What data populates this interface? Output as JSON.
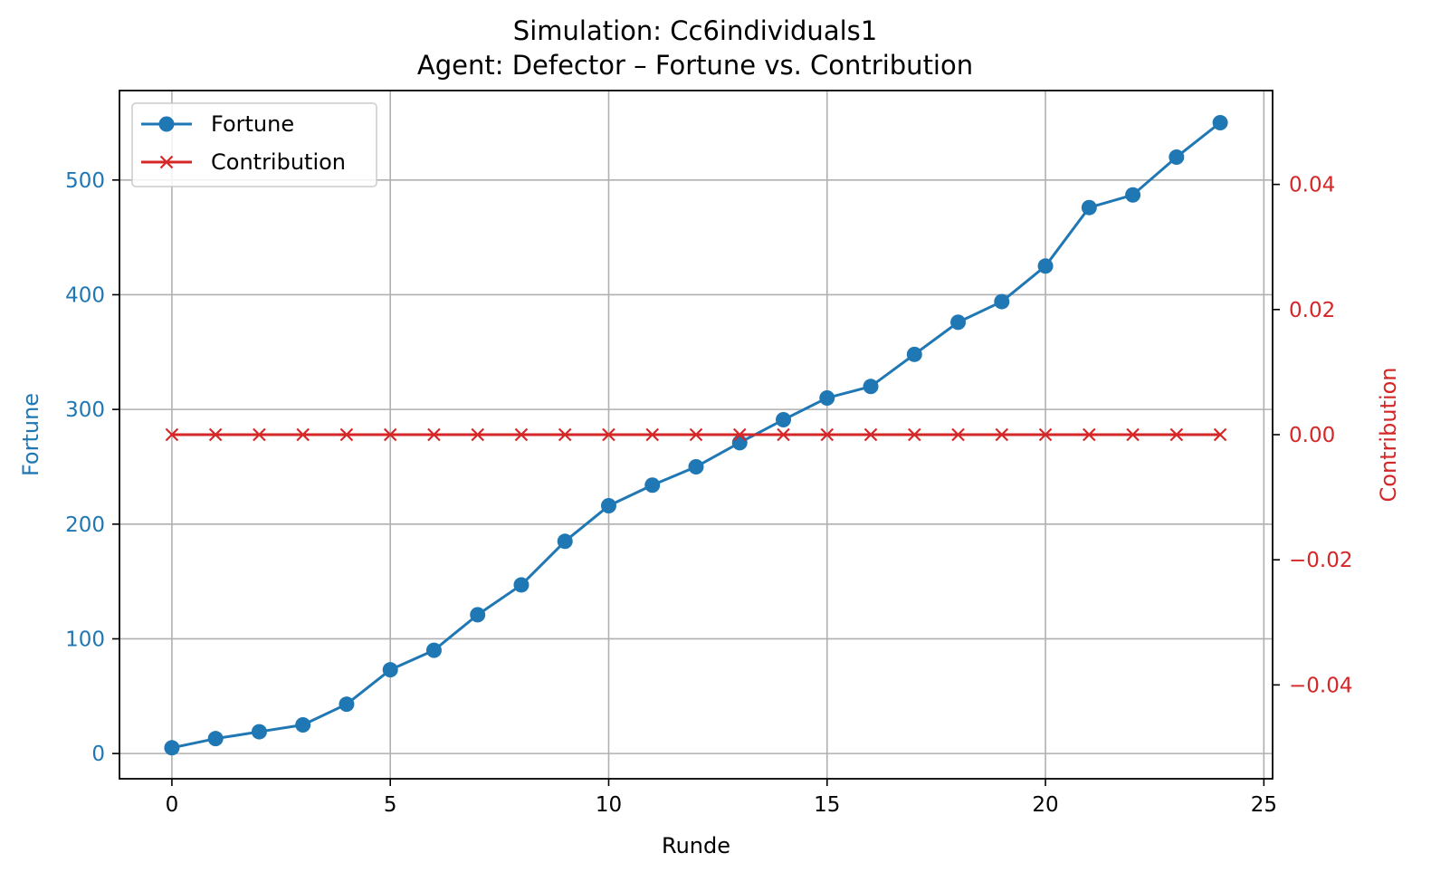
{
  "chart_data": {
    "type": "line",
    "title": "Simulation: Cc6individuals1",
    "subtitle": "Agent: Defector – Fortune vs. Contribution",
    "xlabel": "Runde",
    "ylabel_left": "Fortune",
    "ylabel_right": "Contribution",
    "x": [
      0,
      1,
      2,
      3,
      4,
      5,
      6,
      7,
      8,
      9,
      10,
      11,
      12,
      13,
      14,
      15,
      16,
      17,
      18,
      19,
      20,
      21,
      22,
      23,
      24
    ],
    "xlim": [
      -1.2,
      25.2
    ],
    "ylim_left": [
      -22,
      578
    ],
    "ylim_right": [
      -0.055,
      0.055
    ],
    "x_ticks": [
      0,
      5,
      10,
      15,
      20,
      25
    ],
    "y_ticks_left": [
      0,
      100,
      200,
      300,
      400,
      500
    ],
    "y_ticks_right": [
      -0.04,
      -0.02,
      0.0,
      0.02,
      0.04
    ],
    "y_tick_labels_right": [
      "−0.04",
      "−0.02",
      "0.00",
      "0.02",
      "0.04"
    ],
    "grid": true,
    "legend_position": "top-left",
    "series": [
      {
        "name": "Fortune",
        "axis": "left",
        "color": "#1f77b4",
        "marker": "circle",
        "values": [
          5,
          13,
          19,
          25,
          43,
          73,
          90,
          121,
          147,
          185,
          216,
          234,
          250,
          271,
          291,
          310,
          320,
          348,
          376,
          394,
          425,
          476,
          487,
          520,
          550
        ]
      },
      {
        "name": "Contribution",
        "axis": "right",
        "color": "#d62728",
        "marker": "x",
        "values": [
          0,
          0,
          0,
          0,
          0,
          0,
          0,
          0,
          0,
          0,
          0,
          0,
          0,
          0,
          0,
          0,
          0,
          0,
          0,
          0,
          0,
          0,
          0,
          0,
          0
        ]
      }
    ]
  }
}
